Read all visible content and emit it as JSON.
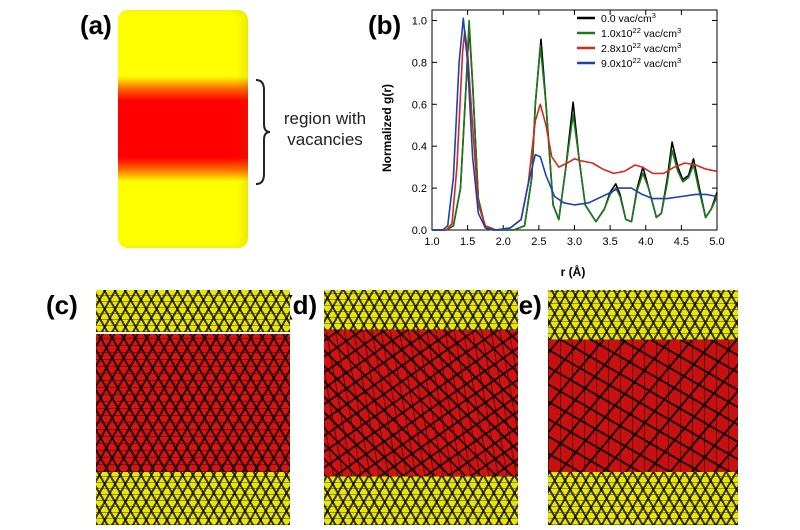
{
  "panel_labels": {
    "a": "(a)",
    "b": "(b)",
    "c": "(c)",
    "d": "(d)",
    "e": "(e)"
  },
  "panel_a": {
    "region_label_line1": "region with",
    "region_label_line2": "vacancies",
    "colors": {
      "bulk": "#ffff00",
      "vacancy_region": "#ff0000"
    }
  },
  "panels_cde": {
    "colors": {
      "crystal": "#e8e40c",
      "vacancy_region": "#d51414"
    }
  },
  "chart_data": {
    "type": "line",
    "title": "",
    "xlabel": "r (Å)",
    "ylabel": "Normalized g(r)",
    "xlim": [
      1.0,
      5.0
    ],
    "ylim": [
      0.0,
      1.05
    ],
    "xticks": [
      "1.0",
      "1.5",
      "2.0",
      "2.5",
      "3.0",
      "3.5",
      "4.0",
      "4.5",
      "5.0"
    ],
    "yticks": [
      "0.0",
      "0.2",
      "0.4",
      "0.6",
      "0.8",
      "1.0"
    ],
    "grid": false,
    "legend_position": "top-right",
    "series": [
      {
        "name": "0.0 vac/cm³",
        "legend": {
          "base": "0.0 vac/cm",
          "sup": "3"
        },
        "color": "#000000",
        "points": [
          [
            1.0,
            0
          ],
          [
            1.2,
            0
          ],
          [
            1.3,
            0.02
          ],
          [
            1.4,
            0.2
          ],
          [
            1.48,
            0.7
          ],
          [
            1.52,
            0.97
          ],
          [
            1.57,
            0.7
          ],
          [
            1.65,
            0.15
          ],
          [
            1.75,
            0.01
          ],
          [
            1.85,
            0
          ],
          [
            2.15,
            0
          ],
          [
            2.3,
            0.02
          ],
          [
            2.4,
            0.25
          ],
          [
            2.45,
            0.6
          ],
          [
            2.53,
            0.91
          ],
          [
            2.6,
            0.6
          ],
          [
            2.7,
            0.12
          ],
          [
            2.78,
            0.05
          ],
          [
            2.88,
            0.3
          ],
          [
            2.98,
            0.61
          ],
          [
            3.06,
            0.35
          ],
          [
            3.15,
            0.12
          ],
          [
            3.3,
            0.04
          ],
          [
            3.42,
            0.1
          ],
          [
            3.5,
            0.18
          ],
          [
            3.58,
            0.22
          ],
          [
            3.64,
            0.17
          ],
          [
            3.72,
            0.05
          ],
          [
            3.8,
            0.04
          ],
          [
            3.88,
            0.2
          ],
          [
            3.96,
            0.3
          ],
          [
            4.04,
            0.2
          ],
          [
            4.15,
            0.06
          ],
          [
            4.22,
            0.08
          ],
          [
            4.3,
            0.24
          ],
          [
            4.37,
            0.42
          ],
          [
            4.45,
            0.3
          ],
          [
            4.52,
            0.24
          ],
          [
            4.6,
            0.26
          ],
          [
            4.67,
            0.34
          ],
          [
            4.74,
            0.22
          ],
          [
            4.84,
            0.06
          ],
          [
            4.92,
            0.1
          ],
          [
            5.0,
            0.18
          ]
        ]
      },
      {
        "name": "1.0x10²² vac/cm³",
        "legend": {
          "base": "1.0x10",
          "sup1": "22",
          "mid": " vac/cm",
          "sup2": "3"
        },
        "color": "#1b7a1b",
        "points": [
          [
            1.0,
            0
          ],
          [
            1.2,
            0
          ],
          [
            1.3,
            0.02
          ],
          [
            1.4,
            0.2
          ],
          [
            1.48,
            0.7
          ],
          [
            1.52,
            1.0
          ],
          [
            1.57,
            0.7
          ],
          [
            1.65,
            0.15
          ],
          [
            1.75,
            0.01
          ],
          [
            1.85,
            0
          ],
          [
            2.15,
            0
          ],
          [
            2.3,
            0.02
          ],
          [
            2.4,
            0.25
          ],
          [
            2.45,
            0.6
          ],
          [
            2.52,
            0.88
          ],
          [
            2.6,
            0.6
          ],
          [
            2.7,
            0.12
          ],
          [
            2.78,
            0.05
          ],
          [
            2.88,
            0.3
          ],
          [
            2.98,
            0.55
          ],
          [
            3.06,
            0.35
          ],
          [
            3.15,
            0.12
          ],
          [
            3.3,
            0.04
          ],
          [
            3.42,
            0.1
          ],
          [
            3.5,
            0.17
          ],
          [
            3.58,
            0.2
          ],
          [
            3.64,
            0.16
          ],
          [
            3.72,
            0.05
          ],
          [
            3.8,
            0.04
          ],
          [
            3.88,
            0.19
          ],
          [
            3.96,
            0.27
          ],
          [
            4.04,
            0.2
          ],
          [
            4.15,
            0.06
          ],
          [
            4.22,
            0.08
          ],
          [
            4.3,
            0.22
          ],
          [
            4.37,
            0.38
          ],
          [
            4.45,
            0.28
          ],
          [
            4.52,
            0.23
          ],
          [
            4.6,
            0.25
          ],
          [
            4.67,
            0.31
          ],
          [
            4.74,
            0.2
          ],
          [
            4.84,
            0.06
          ],
          [
            4.92,
            0.1
          ],
          [
            5.0,
            0.16
          ]
        ]
      },
      {
        "name": "2.8x10²² vac/cm³",
        "legend": {
          "base": "2.8x10",
          "sup1": "22",
          "mid": " vac/cm",
          "sup2": "3"
        },
        "color": "#d42a1e",
        "points": [
          [
            1.0,
            0
          ],
          [
            1.2,
            0
          ],
          [
            1.28,
            0.03
          ],
          [
            1.35,
            0.3
          ],
          [
            1.43,
            0.85
          ],
          [
            1.46,
            0.95
          ],
          [
            1.5,
            0.85
          ],
          [
            1.58,
            0.45
          ],
          [
            1.65,
            0.12
          ],
          [
            1.75,
            0.02
          ],
          [
            1.9,
            0
          ],
          [
            2.1,
            0.01
          ],
          [
            2.25,
            0.05
          ],
          [
            2.35,
            0.22
          ],
          [
            2.45,
            0.52
          ],
          [
            2.52,
            0.6
          ],
          [
            2.6,
            0.5
          ],
          [
            2.68,
            0.35
          ],
          [
            2.78,
            0.3
          ],
          [
            2.9,
            0.32
          ],
          [
            3.0,
            0.34
          ],
          [
            3.1,
            0.33
          ],
          [
            3.25,
            0.32
          ],
          [
            3.4,
            0.29
          ],
          [
            3.55,
            0.27
          ],
          [
            3.7,
            0.28
          ],
          [
            3.85,
            0.31
          ],
          [
            3.95,
            0.3
          ],
          [
            4.1,
            0.27
          ],
          [
            4.25,
            0.27
          ],
          [
            4.4,
            0.3
          ],
          [
            4.55,
            0.32
          ],
          [
            4.7,
            0.31
          ],
          [
            4.85,
            0.29
          ],
          [
            5.0,
            0.28
          ]
        ]
      },
      {
        "name": "9.0x10²² vac/cm³",
        "legend": {
          "base": "9.0x10",
          "sup1": "22",
          "mid": " vac/cm",
          "sup2": "3"
        },
        "color": "#1f3fb5",
        "points": [
          [
            1.0,
            0
          ],
          [
            1.15,
            0
          ],
          [
            1.22,
            0.02
          ],
          [
            1.3,
            0.25
          ],
          [
            1.38,
            0.8
          ],
          [
            1.44,
            1.01
          ],
          [
            1.5,
            0.8
          ],
          [
            1.57,
            0.35
          ],
          [
            1.65,
            0.08
          ],
          [
            1.75,
            0.01
          ],
          [
            1.9,
            0
          ],
          [
            2.1,
            0.01
          ],
          [
            2.25,
            0.05
          ],
          [
            2.35,
            0.22
          ],
          [
            2.45,
            0.36
          ],
          [
            2.52,
            0.35
          ],
          [
            2.6,
            0.26
          ],
          [
            2.72,
            0.16
          ],
          [
            2.85,
            0.13
          ],
          [
            3.0,
            0.12
          ],
          [
            3.2,
            0.13
          ],
          [
            3.45,
            0.17
          ],
          [
            3.62,
            0.2
          ],
          [
            3.8,
            0.2
          ],
          [
            3.95,
            0.17
          ],
          [
            4.1,
            0.15
          ],
          [
            4.3,
            0.15
          ],
          [
            4.5,
            0.16
          ],
          [
            4.7,
            0.17
          ],
          [
            4.85,
            0.17
          ],
          [
            5.0,
            0.16
          ]
        ]
      }
    ]
  }
}
